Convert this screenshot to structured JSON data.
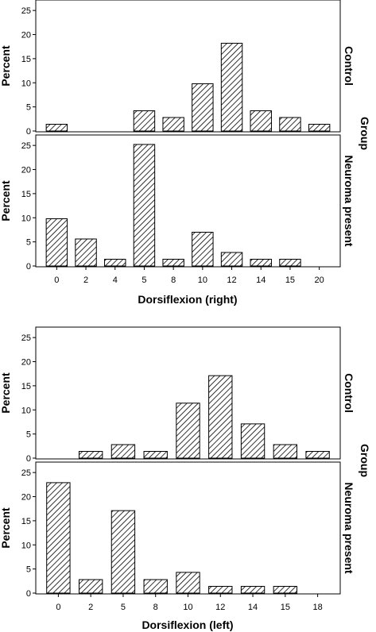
{
  "chart_data": [
    {
      "type": "bar",
      "ylabel": "Percent",
      "xlabel": "Dorsiflexion (right)",
      "group_label": "Group",
      "categories": [
        "0",
        "2",
        "4",
        "5",
        "8",
        "10",
        "12",
        "14",
        "15",
        "20"
      ],
      "ylim": [
        0,
        27
      ],
      "yticks": [
        "0",
        "5",
        "10",
        "15",
        "20",
        "25"
      ],
      "hatch": "diagonal",
      "series": [
        {
          "name": "Control",
          "values": [
            1.4,
            0,
            0,
            4.2,
            2.8,
            9.8,
            18.2,
            4.2,
            2.8,
            1.4
          ]
        },
        {
          "name": "Neuroma present",
          "values": [
            9.8,
            5.6,
            1.4,
            25.2,
            1.4,
            7.0,
            2.8,
            1.4,
            1.4,
            0
          ]
        }
      ]
    },
    {
      "type": "bar",
      "ylabel": "Percent",
      "xlabel": "Dorsiflexion (left)",
      "group_label": "Group",
      "categories": [
        "0",
        "2",
        "5",
        "8",
        "10",
        "12",
        "14",
        "15",
        "18"
      ],
      "ylim": [
        0,
        27
      ],
      "yticks": [
        "0",
        "5",
        "10",
        "15",
        "20",
        "25"
      ],
      "hatch": "diagonal",
      "series": [
        {
          "name": "Control",
          "values": [
            0,
            1.4,
            2.8,
            1.4,
            11.4,
            17.1,
            7.1,
            2.8,
            1.4
          ]
        },
        {
          "name": "Neuroma present",
          "values": [
            22.9,
            2.8,
            17.1,
            2.8,
            4.3,
            1.4,
            1.4,
            1.4,
            0
          ]
        }
      ]
    }
  ]
}
